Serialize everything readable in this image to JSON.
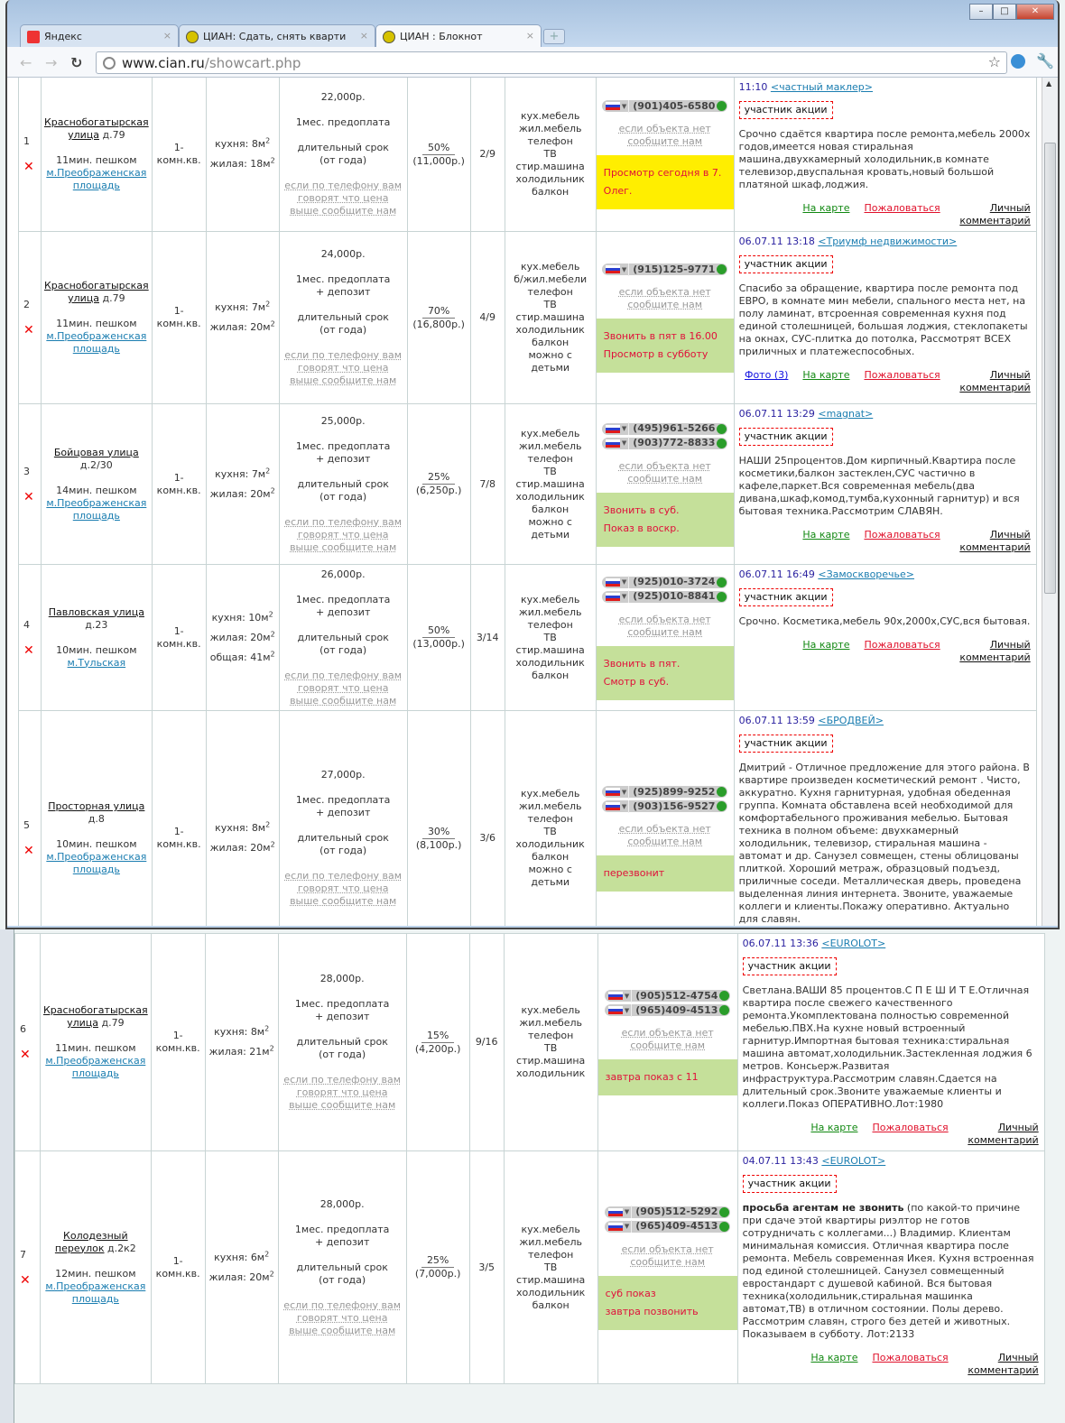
{
  "browser": {
    "tabs": [
      {
        "label": "Яндекс",
        "icon": "yandex-icon",
        "active": false
      },
      {
        "label": "ЦИАН: Сдать, снять кварти",
        "icon": "cian-coins-icon",
        "active": false
      },
      {
        "label": "ЦИАН : Блокнот",
        "icon": "cian-coins-icon",
        "active": true
      }
    ],
    "url_host": "www.cian.ru",
    "url_path": "/showcart.php",
    "window_buttons": [
      "–",
      "□",
      "✕"
    ]
  },
  "labels": {
    "rooms": "1-комн.кв.",
    "price_note": "если по телефону вам говорят что цена выше сообщите нам",
    "missing": "если объекта нет сообщите нам",
    "badge": "участник акции",
    "map": "На карте",
    "complain": "Пожаловаться",
    "comment": "Личный комментарий",
    "walk_suffix": "пешком",
    "delete": "✕"
  },
  "colors": {
    "note_yellow": "#ffee00",
    "note_green": "#c5e09a",
    "note_text": "#e0103a",
    "link": "#1a7db0",
    "date": "#2b22a0"
  },
  "rows": [
    {
      "num": "1",
      "street": "Краснобогатырская улица",
      "house": "д.79",
      "walk": "11мин.",
      "metro": "м.Преображенская площадь",
      "areas": [
        {
          "label": "кухня:",
          "value": "8м",
          "sup": "2"
        },
        {
          "label": "жилая:",
          "value": "18м",
          "sup": "2"
        }
      ],
      "price": "22,000р.",
      "prepay": [
        "1мес. предоплата"
      ],
      "term": [
        "длительный срок",
        "(от года)"
      ],
      "commission_pct": "50%",
      "commission_amount": "(11,000р.)",
      "floor": "2/9",
      "amenities": [
        "кух.мебель",
        "жил.мебель",
        "телефон",
        "ТВ",
        "стир.машина",
        "холодильник",
        "балкон"
      ],
      "phones": [
        "(901)405-6580"
      ],
      "note": [
        "Просмотр сегодня в 7.",
        "Олег."
      ],
      "note_color": "#ffee00",
      "date": "11:10",
      "agency": "<частный маклер>",
      "desc_bold": "",
      "desc": "Срочно сдаётся квартира после ремонта,мебель 2000х годов,имеется новая стиральная машина,двухкамерный холодильник,в комнате телевизор,двуспальная кровать,новый большой платяной шкаф,лоджия.",
      "photo": ""
    },
    {
      "num": "2",
      "street": "Краснобогатырская улица",
      "house": "д.79",
      "walk": "11мин.",
      "metro": "м.Преображенская площадь",
      "areas": [
        {
          "label": "кухня:",
          "value": "7м",
          "sup": "2"
        },
        {
          "label": "жилая:",
          "value": "20м",
          "sup": "2"
        }
      ],
      "price": "24,000р.",
      "prepay": [
        "1мес. предоплата",
        "+ депозит"
      ],
      "term": [
        "длительный срок",
        "(от года)"
      ],
      "commission_pct": "70%",
      "commission_amount": "(16,800р.)",
      "floor": "4/9",
      "amenities": [
        "кух.мебель",
        "б/жил.мебели",
        "телефон",
        "ТВ",
        "стир.машина",
        "холодильник",
        "балкон",
        "можно с детьми"
      ],
      "phones": [
        "(915)125-9771"
      ],
      "note": [
        "Звонить в пят в 16.00",
        "Просмотр в субботу"
      ],
      "note_color": "#c5e09a",
      "date": "06.07.11 13:18",
      "agency": "<Триумф недвижимости>",
      "desc_bold": "",
      "desc": "Спасибо за обращение, квартира после ремонта под ЕВРО, в комнате мин мебели, спального места нет, на полу ламинат, втсроенная современная кухня под единой столешницей, большая лоджия, стеклопакеты на окнах, СУС-плитка до потолка, Рассмотрят ВСЕХ приличных и платежеспособных.",
      "photo": "Фото (3)"
    },
    {
      "num": "3",
      "street": "Бойцовая улица",
      "house": "д.2/30",
      "walk": "14мин.",
      "metro": "м.Преображенская площадь",
      "areas": [
        {
          "label": "кухня:",
          "value": "7м",
          "sup": "2"
        },
        {
          "label": "жилая:",
          "value": "20м",
          "sup": "2"
        }
      ],
      "price": "25,000р.",
      "prepay": [
        "1мес. предоплата",
        "+ депозит"
      ],
      "term": [
        "длительный срок",
        "(от года)"
      ],
      "commission_pct": "25%",
      "commission_amount": "(6,250р.)",
      "floor": "7/8",
      "amenities": [
        "кух.мебель",
        "жил.мебель",
        "телефон",
        "ТВ",
        "стир.машина",
        "холодильник",
        "балкон",
        "можно с детьми"
      ],
      "phones": [
        "(495)961-5266",
        "(903)772-8833"
      ],
      "note": [
        "Звонить в суб.",
        "Показ в воскр."
      ],
      "note_color": "#c5e09a",
      "date": "06.07.11 13:29",
      "agency": "<magnat>",
      "desc_bold": "",
      "desc": "НАШИ 25процентов.Дом кирпичный.Квартира после косметики,балкон застеклен,СУС частично в кафеле,паркет.Вся современная мебель(два дивана,шкаф,комод,тумба,кухонный гарнитур) и вся бытовая техника.Рассмотрим СЛАВЯН.",
      "photo": ""
    },
    {
      "num": "4",
      "street": "Павловская улица",
      "house": "д.23",
      "walk": "10мин.",
      "metro": "м.Тульская",
      "areas": [
        {
          "label": "кухня:",
          "value": "10м",
          "sup": "2"
        },
        {
          "label": "жилая:",
          "value": "20м",
          "sup": "2"
        },
        {
          "label": "общая:",
          "value": "41м",
          "sup": "2"
        }
      ],
      "price": "26,000р.",
      "prepay": [
        "1мес. предоплата",
        "+ депозит"
      ],
      "term": [
        "длительный срок",
        "(от года)"
      ],
      "commission_pct": "50%",
      "commission_amount": "(13,000р.)",
      "floor": "3/14",
      "amenities": [
        "кух.мебель",
        "жил.мебель",
        "телефон",
        "ТВ",
        "стир.машина",
        "холодильник",
        "балкон"
      ],
      "phones": [
        "(925)010-3724",
        "(925)010-8841"
      ],
      "note": [
        "Звонить в пят.",
        "Смотр в суб."
      ],
      "note_color": "#c5e09a",
      "date": "06.07.11 16:49",
      "agency": "<Замоскворечье>",
      "desc_bold": "",
      "desc": "Срочно. Косметика,мебель 90х,2000х,СУС,вся бытовая.",
      "photo": ""
    },
    {
      "num": "5",
      "street": "Просторная улица",
      "house": "д.8",
      "walk": "10мин.",
      "metro": "м.Преображенская площадь",
      "areas": [
        {
          "label": "кухня:",
          "value": "8м",
          "sup": "2"
        },
        {
          "label": "жилая:",
          "value": "20м",
          "sup": "2"
        }
      ],
      "price": "27,000р.",
      "prepay": [
        "1мес. предоплата",
        "+ депозит"
      ],
      "term": [
        "длительный срок",
        "(от года)"
      ],
      "commission_pct": "30%",
      "commission_amount": "(8,100р.)",
      "floor": "3/6",
      "amenities": [
        "кух.мебель",
        "жил.мебель",
        "телефон",
        "ТВ",
        "холодильник",
        "балкон",
        "можно с детьми"
      ],
      "phones": [
        "(925)899-9252",
        "(903)156-9527"
      ],
      "note": [
        "перезвонит"
      ],
      "note_color": "#c5e09a",
      "date": "06.07.11 13:59",
      "agency": "<БРОДВЕЙ>",
      "desc_bold": "",
      "desc": "Дмитрий - Отличное предложение для этого района. В квартире произведен косметический ремонт . Чисто, аккуратно. Кухня гарнитурная, удобная обеденная группа. Комната обставлена всей необходимой для комфортабельного проживания мебелью. Бытовая техника в полном объеме: двухкамерный холодильник, телевизор, стиральная машина - автомат и др. Санузел совмещен, стены облицованы плиткой. Хороший метраж, образцовый подъезд, приличные соседи. Металлическая дверь, проведена выделенная линия интернета. Звоните, уважаемые коллеги и клиенты.Покажу оперативно. Актуально для славян.",
      "photo": ""
    },
    {
      "num": "6",
      "street": "Краснобогатырская улица",
      "house": "д.79",
      "walk": "11мин.",
      "metro": "м.Преображенская площадь",
      "areas": [
        {
          "label": "кухня:",
          "value": "8м",
          "sup": "2"
        },
        {
          "label": "жилая:",
          "value": "21м",
          "sup": "2"
        }
      ],
      "price": "28,000р.",
      "prepay": [
        "1мес. предоплата",
        "+ депозит"
      ],
      "term": [
        "длительный срок",
        "(от года)"
      ],
      "commission_pct": "15%",
      "commission_amount": "(4,200р.)",
      "floor": "9/16",
      "amenities": [
        "кух.мебель",
        "жил.мебель",
        "телефон",
        "ТВ",
        "стир.машина",
        "холодильник"
      ],
      "phones": [
        "(905)512-4754",
        "(965)409-4513"
      ],
      "note": [
        "завтра показ с 11"
      ],
      "note_color": "#c5e09a",
      "date": "06.07.11 13:36",
      "agency": "<EUROLOT>",
      "desc_bold": "",
      "desc": "Светлана.ВАШИ 85 процентов.С П Е Ш И Т Е.Отличная квартира после свежего качественного ремонта.Укомплектована полностью современной мебелью.ПВХ.На кухне новый встроенный гарнитур.Импортная бытовая техника:стиральная машина автомат,холодильник.Застекленная лоджия 6 метров. Консьерж.Развитая инфраструктура.Рассмотрим славян.Сдается на длительный срок.Звоните уважаемые клиенты и коллеги.Показ ОПЕРАТИВНО.Лот:1980",
      "photo": ""
    },
    {
      "num": "7",
      "street": "Колодезный переулок",
      "house": "д.2к2",
      "walk": "12мин.",
      "metro": "м.Преображенская площадь",
      "areas": [
        {
          "label": "кухня:",
          "value": "6м",
          "sup": "2"
        },
        {
          "label": "жилая:",
          "value": "20м",
          "sup": "2"
        }
      ],
      "price": "28,000р.",
      "prepay": [
        "1мес. предоплата",
        "+ депозит"
      ],
      "term": [
        "длительный срок",
        "(от года)"
      ],
      "commission_pct": "25%",
      "commission_amount": "(7,000р.)",
      "floor": "3/5",
      "amenities": [
        "кух.мебель",
        "жил.мебель",
        "телефон",
        "ТВ",
        "стир.машина",
        "холодильник",
        "балкон"
      ],
      "phones": [
        "(905)512-5292",
        "(965)409-4513"
      ],
      "note": [
        "суб показ",
        "завтра позвонить"
      ],
      "note_color": "#c5e09a",
      "date": "04.07.11 13:43",
      "agency": "<EUROLOT>",
      "desc_bold": "просьба агентам не звонить",
      "desc": " (по какой-то причине при сдаче этой квартиры риэлтор не готов сотрудничать с коллегами...) Владимир. Клиентам минимальная комиссия. Отличная квартира после ремонта. Мебель современная Икея. Кухня встроенная под единой столешницей. Санузел совмещенный евростандарт с душевой кабиной. Вся бытовая техника(холодильник,стиральная машинка автомат,ТВ) в отличном состоянии. Полы дерево. Рассмотрим славян, строго без детей и животных. Показываем в субботу. Лот:2133",
      "photo": ""
    }
  ]
}
